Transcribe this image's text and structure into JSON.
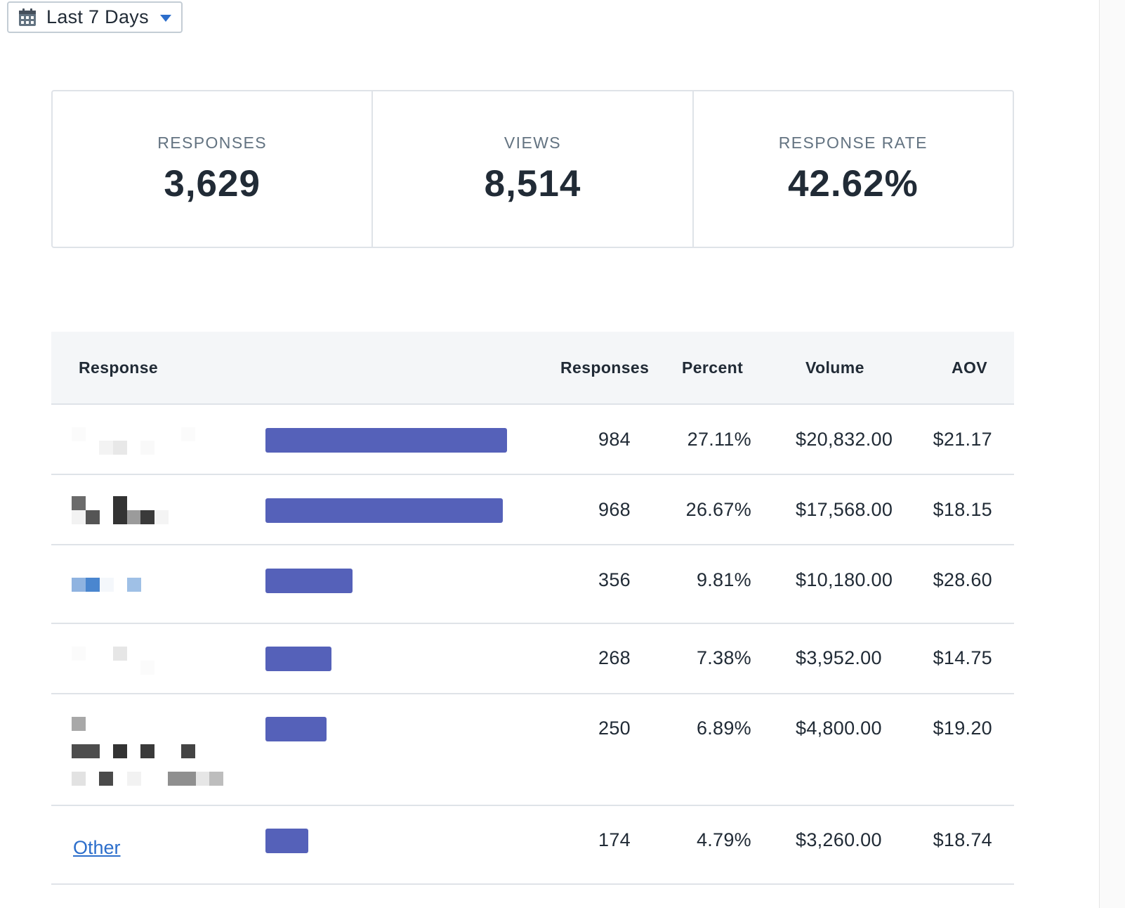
{
  "date_filter": {
    "label": "Last 7 Days",
    "icon": "calendar-icon",
    "caret_icon": "caret-down-icon",
    "accent": "#2c6ecb"
  },
  "stats": [
    {
      "label": "RESPONSES",
      "value": "3,629"
    },
    {
      "label": "VIEWS",
      "value": "8,514"
    },
    {
      "label": "RESPONSE RATE",
      "value": "42.62%"
    }
  ],
  "table": {
    "headers": {
      "response": "Response",
      "responses": "Responses",
      "percent": "Percent",
      "volume": "Volume",
      "aov": "AOV"
    },
    "bar_color": "#5561b9",
    "rows": [
      {
        "responses": "984",
        "percent": "27.11%",
        "volume": "$20,832.00",
        "aov": "$21.17",
        "share": 27.11
      },
      {
        "responses": "968",
        "percent": "26.67%",
        "volume": "$17,568.00",
        "aov": "$18.15",
        "share": 26.67
      },
      {
        "responses": "356",
        "percent": "9.81%",
        "volume": "$10,180.00",
        "aov": "$28.60",
        "share": 9.81
      },
      {
        "responses": "268",
        "percent": "7.38%",
        "volume": "$3,952.00",
        "aov": "$14.75",
        "share": 7.38
      },
      {
        "responses": "250",
        "percent": "6.89%",
        "volume": "$4,800.00",
        "aov": "$19.20",
        "share": 6.89
      },
      {
        "label": "Other",
        "responses": "174",
        "percent": "4.79%",
        "volume": "$3,260.00",
        "aov": "$18.74",
        "share": 4.79
      }
    ]
  }
}
